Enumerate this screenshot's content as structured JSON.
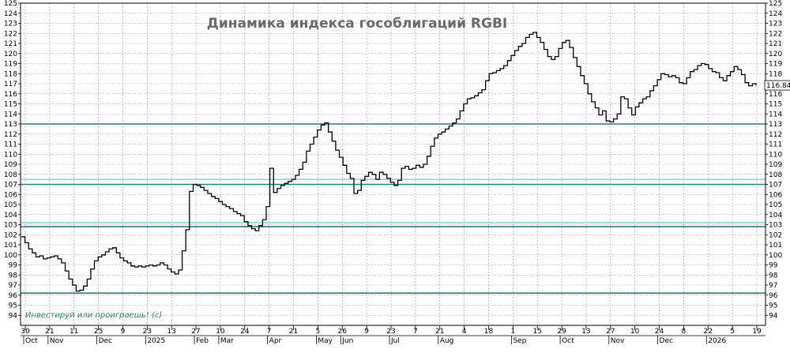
{
  "chart_data": {
    "type": "line",
    "title": "Динамика индекса гособлигаций RGBI",
    "watermark": "Инвестируй или проиграешь! (с)",
    "current_value_label": "116.84",
    "current_value": 116.84,
    "ylim": [
      93,
      125
    ],
    "yticks": [
      94,
      95,
      96,
      97,
      98,
      99,
      100,
      101,
      102,
      103,
      104,
      105,
      106,
      107,
      108,
      109,
      110,
      111,
      112,
      113,
      114,
      115,
      116,
      117,
      118,
      119,
      120,
      121,
      122,
      123,
      124,
      125
    ],
    "ytick_labels": [
      "94",
      "95",
      "96",
      "97",
      "98",
      "99",
      "100",
      "101",
      "102",
      "103",
      "104",
      "105",
      "106",
      "107",
      "108",
      "109",
      "110",
      "111",
      "112",
      "113",
      "114",
      "115",
      "116",
      "117",
      "118",
      "119",
      "120",
      "121",
      "122",
      "123",
      "124",
      "125"
    ],
    "x_day_ticks": [
      "30",
      "21",
      "11",
      "25",
      "9",
      "23",
      "13",
      "27",
      "10",
      "24",
      "7",
      "21",
      "5",
      "26",
      "9",
      "23",
      "7",
      "21",
      "4",
      "18",
      "1",
      "15",
      "29",
      "13",
      "27",
      "10",
      "24",
      "8",
      "22",
      "5",
      "19"
    ],
    "x_month_ticks": [
      "Oct",
      "Nov",
      "Dec",
      "2025",
      "Feb",
      "Mar",
      "Apr",
      "May",
      "Jun",
      "Jul",
      "Aug",
      "Sep",
      "Oct",
      "Nov",
      "Dec",
      "2026"
    ],
    "month_tick_day_index": [
      0,
      1,
      3,
      5,
      7,
      8,
      10,
      12,
      13,
      15,
      17,
      20,
      22,
      24,
      26,
      28
    ],
    "horizontal_levels": [
      {
        "value": 113,
        "color": "#2f7d7a"
      },
      {
        "value": 107.5,
        "color": "#8fd3c4"
      },
      {
        "value": 107,
        "color": "#2f7d7a"
      },
      {
        "value": 103.2,
        "color": "#8fd3c4"
      },
      {
        "value": 102.8,
        "color": "#2f7d7a"
      },
      {
        "value": 96.2,
        "color": "#2f7d7a"
      }
    ],
    "line_color": "#000000",
    "grid": true,
    "series": [
      {
        "values": [
          101.8,
          101.2,
          100.6,
          100.2,
          99.8,
          99.9,
          99.6,
          99.7,
          99.8,
          99.9,
          99.6,
          99.2,
          98.4,
          97.6,
          97.0,
          96.4,
          96.5,
          96.9,
          97.6,
          98.6,
          99.4,
          99.8,
          100.0,
          100.3,
          100.6,
          100.7,
          100.2,
          99.7,
          99.4,
          99.2,
          98.9,
          98.8,
          98.9,
          98.8,
          98.9,
          99.0,
          98.9,
          99.0,
          99.2,
          99.0,
          98.6,
          98.3,
          98.1,
          98.5,
          100.4,
          102.5,
          106.3,
          107.0,
          106.9,
          106.7,
          106.4,
          106.1,
          105.8,
          105.6,
          105.3,
          105.0,
          104.8,
          104.6,
          104.3,
          104.1,
          103.9,
          103.3,
          102.9,
          102.6,
          102.4,
          102.9,
          103.5,
          104.8,
          108.6,
          106.2,
          106.6,
          106.9,
          107.1,
          107.3,
          107.5,
          107.9,
          108.5,
          109.2,
          110.3,
          111.0,
          111.7,
          112.4,
          112.9,
          113.1,
          112.2,
          111.3,
          110.4,
          109.7,
          108.9,
          108.1,
          107.6,
          106.1,
          106.4,
          107.4,
          107.8,
          108.2,
          108.0,
          107.5,
          108.2,
          108.0,
          107.6,
          107.2,
          106.9,
          107.4,
          108.6,
          108.8,
          108.5,
          108.6,
          108.9,
          108.7,
          109.0,
          109.8,
          110.8,
          111.6,
          112.0,
          112.2,
          112.5,
          112.8,
          113.1,
          113.5,
          114.3,
          115.0,
          115.5,
          115.6,
          115.8,
          116.1,
          116.4,
          117.3,
          118.0,
          118.1,
          118.3,
          118.5,
          118.8,
          119.3,
          119.8,
          120.3,
          120.7,
          121.0,
          121.6,
          121.9,
          122.1,
          121.6,
          121.1,
          120.4,
          119.7,
          119.4,
          119.7,
          120.5,
          121.1,
          121.3,
          120.6,
          119.6,
          118.7,
          117.8,
          117.0,
          116.0,
          115.2,
          114.6,
          113.9,
          114.3,
          113.3,
          113.2,
          113.5,
          114.0,
          115.7,
          115.5,
          114.6,
          113.9,
          114.7,
          115.1,
          115.5,
          115.7,
          116.3,
          116.8,
          117.4,
          118.0,
          117.9,
          117.7,
          117.8,
          117.6,
          117.1,
          117.0,
          117.6,
          118.2,
          118.4,
          118.8,
          119.0,
          118.9,
          118.5,
          118.2,
          118.1,
          117.6,
          117.3,
          117.8,
          118.2,
          118.7,
          118.4,
          117.9,
          117.1,
          116.8,
          117.0,
          116.84
        ]
      }
    ]
  }
}
